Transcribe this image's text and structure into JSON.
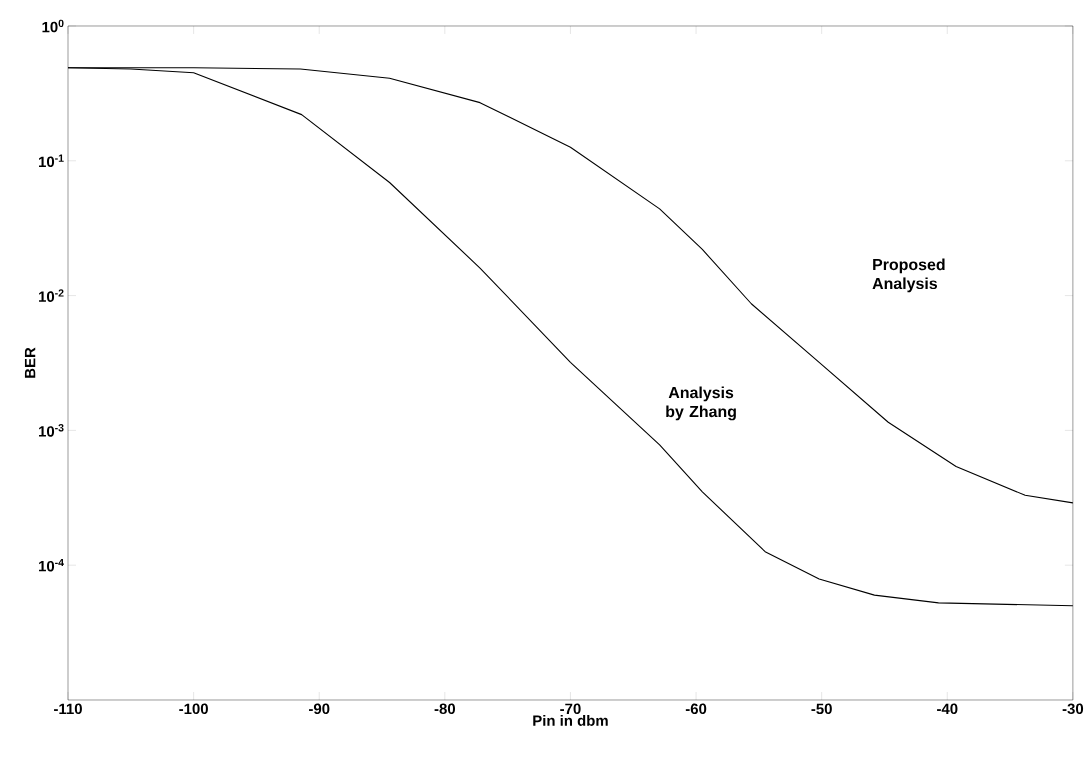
{
  "chart_data": {
    "type": "line",
    "xlabel": "Pin in dbm",
    "ylabel": "BER",
    "log": "y",
    "xlim": [
      -110,
      -30
    ],
    "xticks": [
      -110,
      -100,
      -90,
      -80,
      -70,
      -60,
      -50,
      -40,
      -30
    ],
    "ylim": [
      1e-05,
      1
    ],
    "yticks": [
      {
        "value": 1,
        "label": "10$^{0}$"
      },
      {
        "value": 0.1,
        "label": "10$^{-1}$"
      },
      {
        "value": 0.01,
        "label": "10$^{-2}$"
      },
      {
        "value": 0.001,
        "label": "10$^{-3}$"
      },
      {
        "value": 0.0001,
        "label": "10$^{-4}$"
      }
    ],
    "grid": false,
    "legend": false,
    "marker": "none",
    "line_style": "solid",
    "series": [
      {
        "color": "#000000",
        "x": [
          -110,
          -100,
          -91.5,
          -84.4,
          -77.2,
          -70,
          -62.9,
          -59.5,
          -55.6,
          -50.2,
          -44.7,
          -39.3,
          -33.8,
          -30
        ],
        "values": [
          0.49,
          0.49,
          0.48,
          0.41,
          0.27,
          0.126,
          0.044,
          0.022,
          0.0087,
          0.0032,
          0.00115,
          0.00054,
          0.00033,
          0.00029
        ]
      },
      {
        "color": "#000000",
        "x": [
          -110,
          -105,
          -100,
          -91.4,
          -84.4,
          -77.2,
          -70,
          -62.9,
          -59.5,
          -54.5,
          -50.2,
          -45.8,
          -40.7,
          -30
        ],
        "values": [
          0.49,
          0.48,
          0.45,
          0.22,
          0.069,
          0.016,
          0.0032,
          0.00078,
          0.00035,
          0.000126,
          7.9e-05,
          6e-05,
          5.25e-05,
          5e-05
        ]
      }
    ],
    "annotations": [
      "Proposed Analysis",
      "Analysis by Zhang"
    ]
  }
}
